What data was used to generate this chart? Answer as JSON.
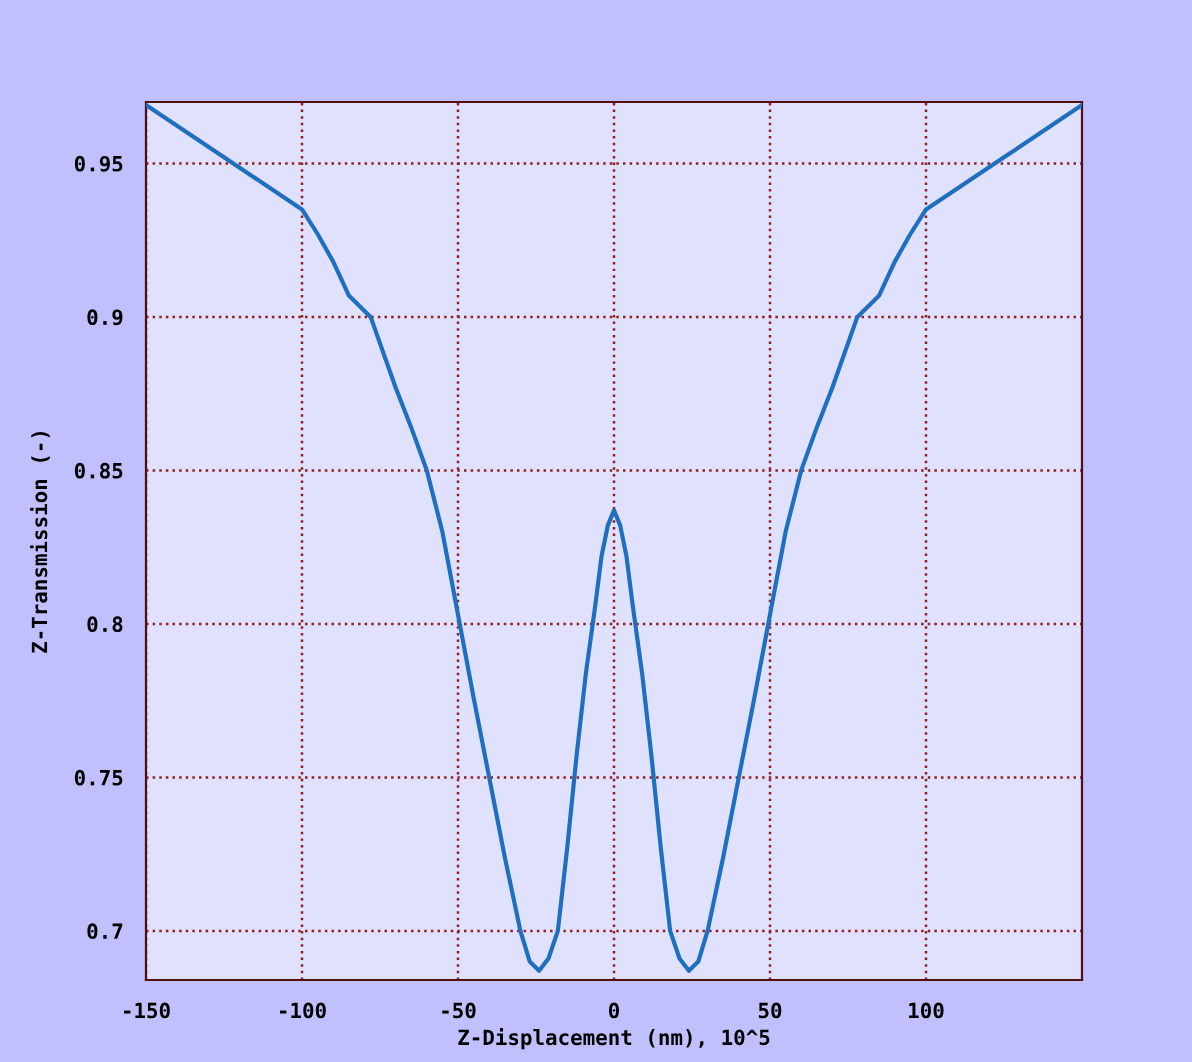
{
  "chart_data": {
    "type": "line",
    "xlabel": "Z-Displacement (nm), 10^5",
    "ylabel": "Z-Transmission (-)",
    "x": [
      -150,
      -125,
      -100,
      -95,
      -90,
      -85,
      -78,
      -70,
      -65,
      -60,
      -55,
      -50,
      -45,
      -40,
      -35,
      -30,
      -27,
      -24,
      -21,
      -18,
      -15,
      -12,
      -9,
      -6,
      -4,
      -2,
      0,
      2,
      4,
      6,
      9,
      12,
      15,
      18,
      21,
      24,
      27,
      30,
      35,
      40,
      45,
      50,
      55,
      60,
      65,
      70,
      78,
      85,
      90,
      95,
      100,
      125,
      150
    ],
    "series": [
      {
        "color": "#1f6fc0",
        "values": [
          0.969,
          0.952,
          0.935,
          0.927,
          0.918,
          0.907,
          0.9,
          0.877,
          0.864,
          0.85,
          0.83,
          0.803,
          0.776,
          0.75,
          0.724,
          0.7,
          0.69,
          0.687,
          0.691,
          0.7,
          0.727,
          0.757,
          0.784,
          0.806,
          0.822,
          0.832,
          0.837,
          0.832,
          0.822,
          0.806,
          0.784,
          0.757,
          0.727,
          0.7,
          0.691,
          0.687,
          0.69,
          0.7,
          0.724,
          0.75,
          0.776,
          0.803,
          0.83,
          0.85,
          0.864,
          0.877,
          0.9,
          0.907,
          0.918,
          0.927,
          0.935,
          0.952,
          0.969
        ]
      }
    ],
    "xlim": [
      -150,
      150
    ],
    "ylim": [
      0.684,
      0.97
    ],
    "xticks": [
      -150,
      -100,
      -50,
      0,
      50,
      100
    ],
    "yticks": [
      0.7,
      0.75,
      0.8,
      0.85,
      0.9,
      0.95
    ],
    "grid": true,
    "legend": false,
    "marker": "none",
    "line_style": "solid"
  }
}
